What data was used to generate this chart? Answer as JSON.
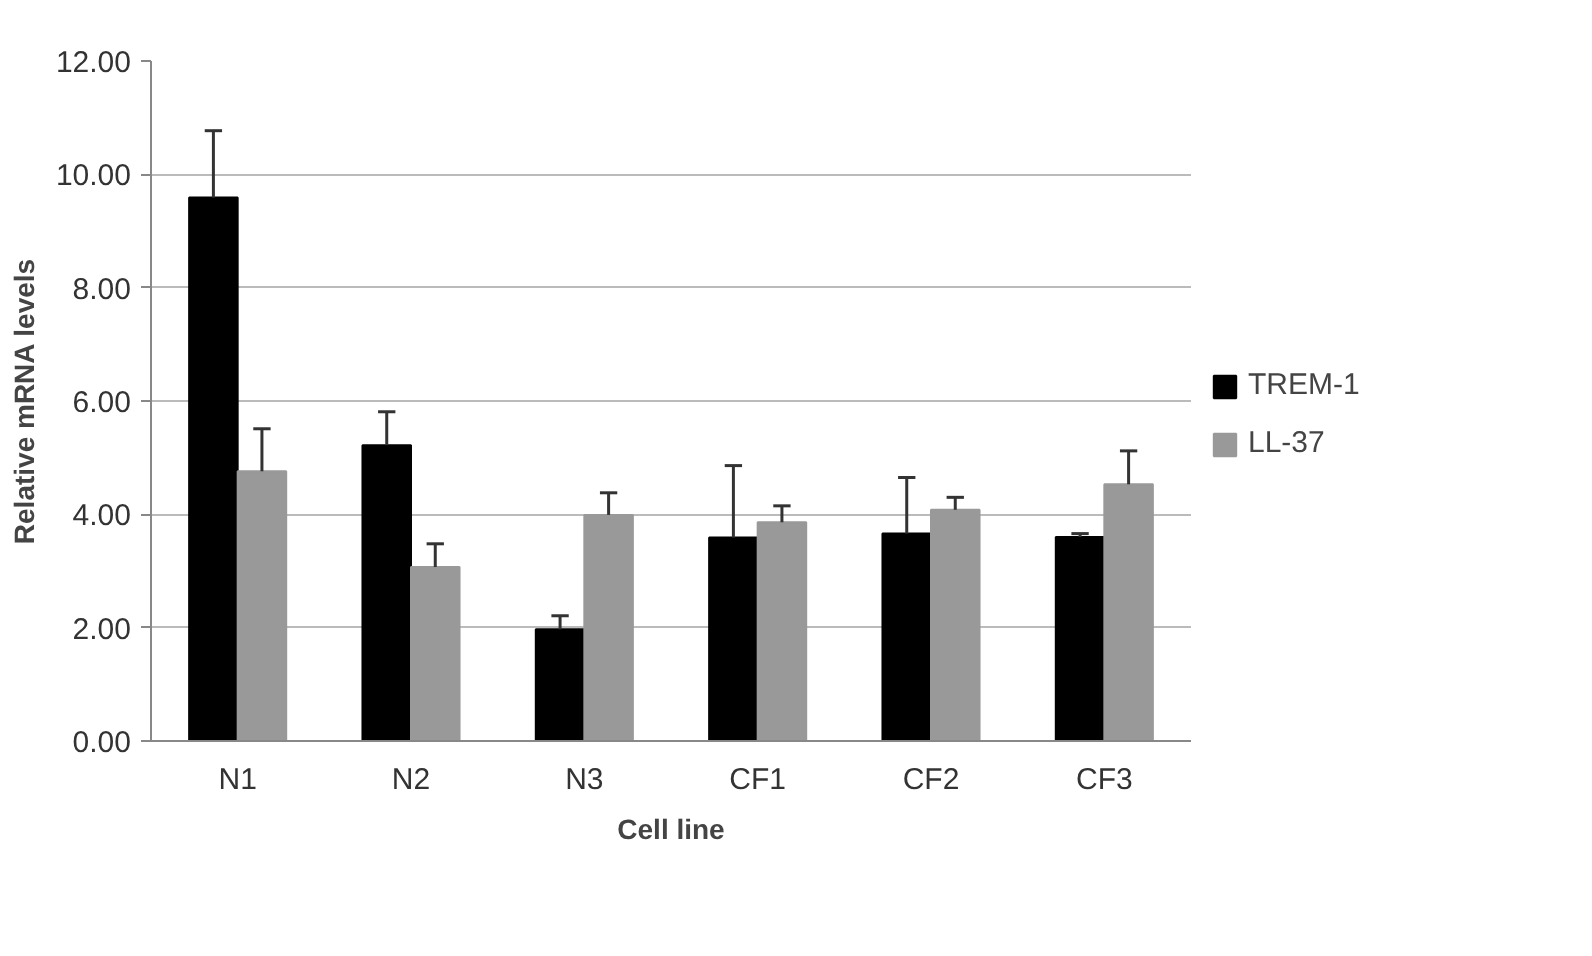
{
  "chart_data": {
    "type": "bar",
    "xlabel": "Cell line",
    "ylabel": "Relative mRNA levels",
    "categories": [
      "N1",
      "N2",
      "N3",
      "CF1",
      "CF2",
      "CF3"
    ],
    "series": [
      {
        "name": "TREM-1",
        "color": "#000000",
        "values": [
          9.59,
          5.22,
          1.97,
          3.59,
          3.66,
          3.6
        ],
        "errors": [
          [
            9.59,
            10.77
          ],
          [
            5.22,
            5.81
          ],
          [
            1.97,
            2.21
          ],
          [
            3.59,
            4.86
          ],
          [
            3.66,
            4.65
          ],
          [
            3.6,
            3.66
          ]
        ]
      },
      {
        "name": "LL-37",
        "color": "#999999",
        "values": [
          4.76,
          3.07,
          3.99,
          3.86,
          4.08,
          4.53
        ],
        "errors": [
          [
            4.76,
            5.51
          ],
          [
            3.07,
            3.48
          ],
          [
            3.99,
            4.38
          ],
          [
            3.86,
            4.15
          ],
          [
            4.08,
            4.3
          ],
          [
            4.53,
            5.12
          ]
        ]
      }
    ],
    "ylim": [
      0,
      12
    ],
    "yticks": [
      {
        "value": 0,
        "label": "0.00"
      },
      {
        "value": 2,
        "label": "2.00"
      },
      {
        "value": 4,
        "label": "4.00"
      },
      {
        "value": 6,
        "label": "6.00"
      },
      {
        "value": 8,
        "label": "8.00"
      },
      {
        "value": 10,
        "label": "10.00"
      },
      {
        "value": 12,
        "label": "12.00"
      }
    ],
    "grid": "y",
    "legend": "right"
  }
}
